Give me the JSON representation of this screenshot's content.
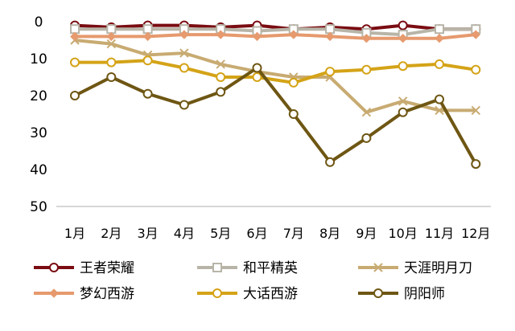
{
  "chart_data": {
    "type": "line",
    "title": "",
    "xlabel": "",
    "ylabel": "",
    "categories": [
      "1月",
      "2月",
      "3月",
      "4月",
      "5月",
      "6月",
      "7月",
      "8月",
      "9月",
      "10月",
      "11月",
      "12月"
    ],
    "y_ticks": [
      "0",
      "10",
      "20",
      "30",
      "40",
      "50"
    ],
    "ylim": [
      0,
      50
    ],
    "y_inverted": true,
    "grid": false,
    "legend_position": "bottom",
    "series": [
      {
        "name": "王者荣耀",
        "color": "#7a0c12",
        "marker": "circle",
        "values": [
          1,
          1.5,
          1,
          1,
          1.5,
          1,
          2,
          1.5,
          2,
          1,
          2,
          2
        ]
      },
      {
        "name": "和平精英",
        "color": "#b8b5a8",
        "marker": "square",
        "values": [
          2,
          2,
          2,
          2,
          2,
          2.5,
          2,
          2,
          3,
          3.5,
          2,
          2
        ]
      },
      {
        "name": "天涯明月刀",
        "color": "#c8ab72",
        "marker": "x",
        "values": [
          5,
          6,
          9,
          8.5,
          11.5,
          13.5,
          15,
          15,
          24.5,
          21.5,
          24,
          24
        ]
      },
      {
        "name": "梦幻西游",
        "color": "#e69a6e",
        "marker": "diamond",
        "values": [
          4,
          4,
          4,
          3.5,
          3.5,
          4,
          3.5,
          4,
          4.5,
          4.5,
          4.5,
          3.5
        ]
      },
      {
        "name": "大话西游",
        "color": "#d4a317",
        "marker": "circle",
        "values": [
          11,
          11,
          10.5,
          12.5,
          15,
          15,
          16.5,
          13.5,
          13,
          12,
          11.5,
          13
        ]
      },
      {
        "name": "阴阳师",
        "color": "#6e5613",
        "marker": "circle",
        "values": [
          20,
          15,
          19.5,
          22.5,
          19,
          12.5,
          25,
          38,
          31.5,
          24.5,
          21,
          38.5
        ]
      }
    ]
  }
}
